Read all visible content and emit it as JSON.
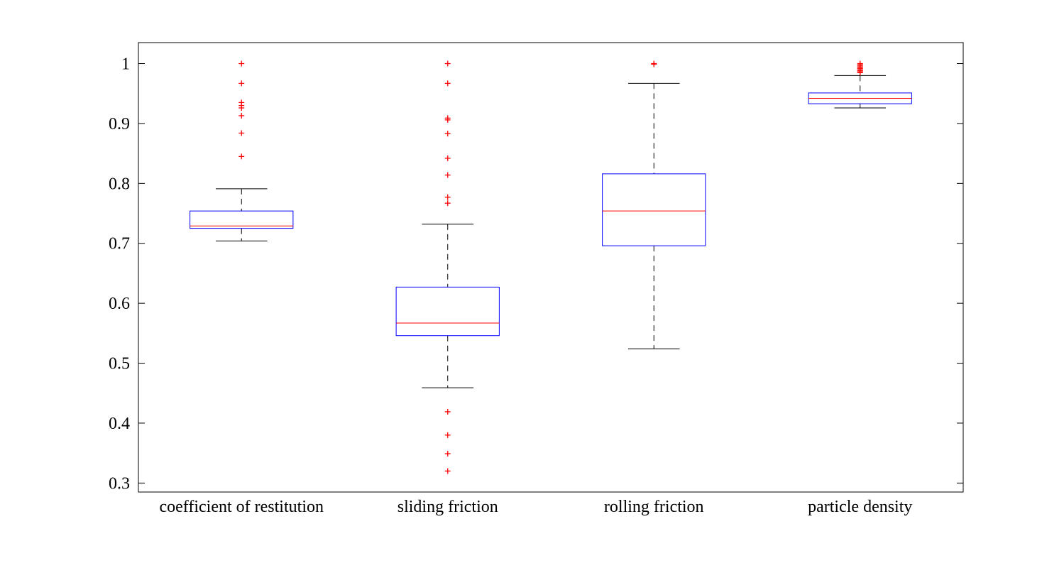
{
  "chart_data": {
    "type": "box",
    "title": "",
    "xlabel": "",
    "ylabel": "",
    "ylim": [
      0.285,
      1.035
    ],
    "yticks": [
      "0.3",
      "0.4",
      "0.5",
      "0.6",
      "0.7",
      "0.8",
      "0.9",
      "1"
    ],
    "grid": false,
    "colors": {
      "box": "#0000ff",
      "median": "#ff0000",
      "whisker": "#000000",
      "outlier": "#ff0000"
    },
    "categories": [
      "coefficient of restitution",
      "sliding friction",
      "rolling friction",
      "particle density"
    ],
    "boxes": [
      {
        "whisker_low": 0.704,
        "q1": 0.725,
        "median": 0.729,
        "q3": 0.754,
        "whisker_high": 0.791,
        "outliers": [
          1.0,
          0.967,
          0.935,
          0.93,
          0.926,
          0.913,
          0.884,
          0.845
        ]
      },
      {
        "whisker_low": 0.459,
        "q1": 0.546,
        "median": 0.567,
        "q3": 0.627,
        "whisker_high": 0.732,
        "outliers": [
          1.0,
          0.967,
          0.909,
          0.906,
          0.883,
          0.842,
          0.814,
          0.777,
          0.767,
          0.419,
          0.38,
          0.349,
          0.32
        ]
      },
      {
        "whisker_low": 0.524,
        "q1": 0.696,
        "median": 0.754,
        "q3": 0.816,
        "whisker_high": 0.967,
        "outliers": [
          1.0,
          0.999
        ]
      },
      {
        "whisker_low": 0.926,
        "q1": 0.933,
        "median": 0.942,
        "q3": 0.951,
        "whisker_high": 0.98,
        "outliers": [
          1.0,
          0.998,
          0.996,
          0.994,
          0.992,
          0.99,
          0.988,
          0.986,
          0.985
        ]
      }
    ]
  }
}
